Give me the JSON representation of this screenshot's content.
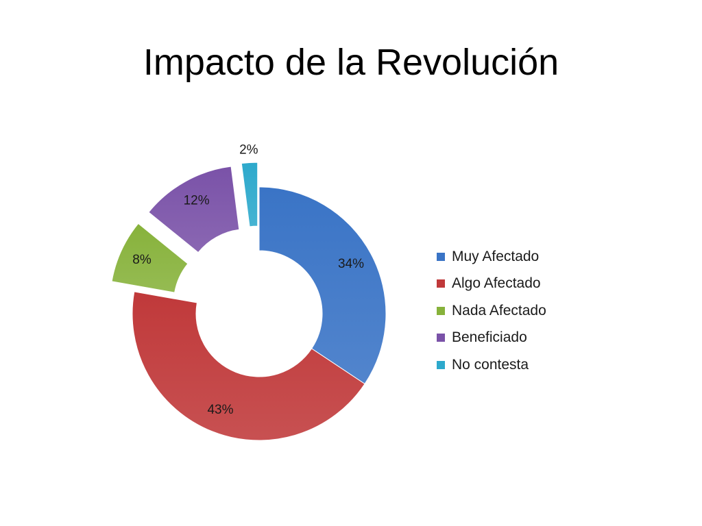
{
  "title": "Impacto de la Revolución",
  "chart_data": {
    "type": "pie",
    "title": "Impacto de la Revolución",
    "categories": [
      "Muy Afectado",
      "Algo Afectado",
      "Nada Afectado",
      "Beneficiado",
      "No contesta"
    ],
    "values": [
      34,
      43,
      8,
      12,
      2
    ],
    "labels": [
      "34%",
      "43%",
      "8%",
      "12%",
      "2%"
    ],
    "colors": [
      "#3a74c6",
      "#c0393a",
      "#87b23b",
      "#7a52a8",
      "#2da9cc"
    ],
    "shape": "doughnut",
    "exploded": [
      "Nada Afectado",
      "Beneficiado",
      "No contesta"
    ],
    "legend_position": "right"
  }
}
